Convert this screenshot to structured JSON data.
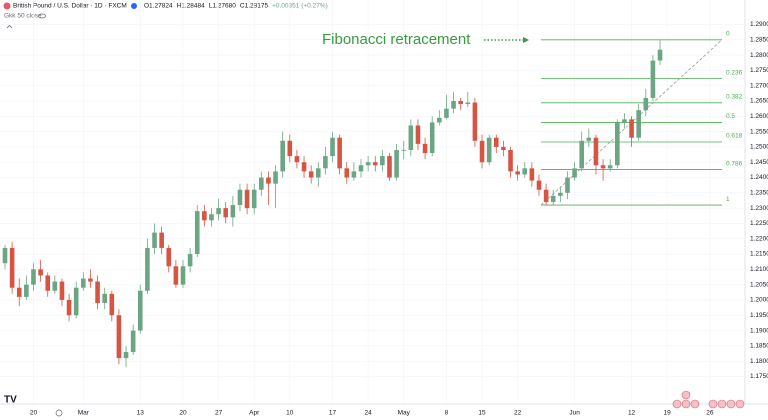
{
  "chart_data": {
    "type": "candlestick",
    "symbol": "British Pound / U.S. Dollar · 1D · FXCM",
    "ohlc_text": [
      "O1.27824",
      "H1.28484",
      "L1.27680",
      "C1.28175",
      "+0.00351 (+0.27%)"
    ],
    "indicator": "Gkk 50 close",
    "annotation": "Fibonacci retracement",
    "up_color": "#6ba583",
    "down_color": "#d75442",
    "fib_color": "#4caf50",
    "categories": [
      null,
      null,
      null,
      null,
      "20",
      null,
      null,
      null,
      null,
      null,
      null,
      "Mar",
      null,
      null,
      null,
      null,
      null,
      null,
      null,
      "13",
      null,
      null,
      null,
      null,
      null,
      "20",
      null,
      null,
      null,
      null,
      "27",
      null,
      null,
      null,
      null,
      "Apr",
      null,
      null,
      null,
      null,
      "10",
      null,
      null,
      null,
      null,
      null,
      "17",
      null,
      null,
      null,
      null,
      "24",
      null,
      null,
      null,
      null,
      "May",
      null,
      null,
      null,
      null,
      null,
      "8",
      null,
      null,
      null,
      null,
      "15",
      null,
      null,
      null,
      null,
      "22",
      null,
      null,
      null,
      null,
      null,
      null,
      null,
      "Jun",
      null,
      null,
      null,
      null,
      null,
      null,
      null,
      "12",
      null,
      null,
      null,
      null,
      "19",
      null,
      null,
      null,
      null,
      null,
      "26"
    ],
    "open": [
      1.212,
      1.217,
      1.204,
      1.201,
      1.205,
      1.21,
      1.208,
      1.203,
      1.206,
      1.2,
      1.195,
      1.204,
      1.207,
      1.206,
      1.199,
      1.202,
      1.195,
      1.181,
      1.183,
      1.19,
      1.203,
      1.217,
      1.222,
      1.217,
      1.211,
      1.205,
      1.211,
      1.215,
      1.229,
      1.226,
      1.228,
      1.23,
      1.227,
      1.231,
      1.236,
      1.23,
      1.236,
      1.24,
      1.238,
      1.242,
      1.252,
      1.247,
      1.245,
      1.242,
      1.24,
      1.243,
      1.247,
      1.253,
      1.243,
      1.24,
      1.242,
      1.244,
      1.245,
      1.244,
      1.247,
      1.24,
      1.249,
      1.249,
      1.257,
      1.251,
      1.248,
      1.258,
      1.2595,
      1.2625,
      1.265,
      1.264,
      1.2645,
      1.252,
      1.245,
      1.253,
      1.25,
      1.249,
      1.242,
      1.241,
      1.243,
      1.239,
      1.236,
      1.232,
      1.234,
      1.235,
      1.24,
      1.243,
      1.252,
      1.253,
      1.244,
      1.243,
      1.244,
      1.258,
      1.259,
      1.253,
      1.262,
      1.266,
      1.27824,
      null,
      null,
      null,
      null,
      null,
      null,
      null
    ],
    "high": [
      1.218,
      1.219,
      1.207,
      1.208,
      1.212,
      1.213,
      1.209,
      1.208,
      1.207,
      1.202,
      1.206,
      1.209,
      1.21,
      1.208,
      1.204,
      1.203,
      1.197,
      1.185,
      1.192,
      1.205,
      1.22,
      1.225,
      1.224,
      1.218,
      1.213,
      1.213,
      1.217,
      1.231,
      1.231,
      1.23,
      1.233,
      1.232,
      1.234,
      1.238,
      1.238,
      1.238,
      1.242,
      1.242,
      1.244,
      1.255,
      1.254,
      1.249,
      1.247,
      1.244,
      1.245,
      1.25,
      1.255,
      1.254,
      1.245,
      1.245,
      1.246,
      1.247,
      1.247,
      1.249,
      1.248,
      1.251,
      1.252,
      1.259,
      1.259,
      1.253,
      1.26,
      1.262,
      1.267,
      1.268,
      1.266,
      1.268,
      1.266,
      1.254,
      1.254,
      1.254,
      1.252,
      1.25,
      1.244,
      1.245,
      1.245,
      1.241,
      1.238,
      1.236,
      1.237,
      1.242,
      1.245,
      1.255,
      1.256,
      1.254,
      1.246,
      1.246,
      1.259,
      1.261,
      1.26,
      1.264,
      1.269,
      1.28,
      1.28484,
      null,
      null,
      null,
      null,
      null,
      null,
      null
    ],
    "low": [
      1.21,
      1.202,
      1.198,
      1.2,
      1.203,
      1.206,
      1.201,
      1.202,
      1.198,
      1.193,
      1.194,
      1.203,
      1.204,
      1.197,
      1.197,
      1.193,
      1.179,
      1.178,
      1.182,
      1.189,
      1.202,
      1.215,
      1.215,
      1.209,
      1.204,
      1.204,
      1.209,
      1.214,
      1.224,
      1.224,
      1.226,
      1.225,
      1.224,
      1.229,
      1.228,
      1.228,
      1.234,
      1.231,
      1.23,
      1.24,
      1.245,
      1.243,
      1.24,
      1.238,
      1.237,
      1.241,
      1.245,
      1.241,
      1.238,
      1.239,
      1.24,
      1.242,
      1.242,
      1.242,
      1.239,
      1.239,
      1.246,
      1.247,
      1.249,
      1.246,
      1.247,
      1.257,
      1.259,
      1.261,
      1.262,
      1.263,
      1.25,
      1.243,
      1.244,
      1.248,
      1.247,
      1.24,
      1.239,
      1.24,
      1.237,
      1.234,
      1.231,
      1.231,
      1.232,
      1.233,
      1.239,
      1.242,
      1.25,
      1.241,
      1.239,
      1.242,
      1.243,
      1.256,
      1.25,
      1.252,
      1.26,
      1.265,
      1.2768,
      null,
      null,
      null,
      null,
      null,
      null,
      null
    ],
    "close": [
      1.217,
      1.204,
      1.201,
      1.205,
      1.21,
      1.208,
      1.203,
      1.206,
      1.2,
      1.195,
      1.204,
      1.207,
      1.206,
      1.199,
      1.202,
      1.195,
      1.181,
      1.183,
      1.19,
      1.203,
      1.217,
      1.222,
      1.217,
      1.211,
      1.205,
      1.211,
      1.215,
      1.229,
      1.226,
      1.228,
      1.23,
      1.227,
      1.231,
      1.236,
      1.23,
      1.236,
      1.24,
      1.238,
      1.242,
      1.252,
      1.247,
      1.245,
      1.242,
      1.24,
      1.243,
      1.247,
      1.253,
      1.243,
      1.24,
      1.242,
      1.244,
      1.245,
      1.244,
      1.247,
      1.24,
      1.249,
      1.249,
      1.257,
      1.251,
      1.248,
      1.258,
      1.2595,
      1.2625,
      1.265,
      1.264,
      1.2645,
      1.252,
      1.245,
      1.253,
      1.25,
      1.249,
      1.242,
      1.241,
      1.243,
      1.239,
      1.236,
      1.232,
      1.234,
      1.235,
      1.24,
      1.243,
      1.252,
      1.253,
      1.244,
      1.243,
      1.244,
      1.258,
      1.259,
      1.253,
      1.262,
      1.266,
      1.2782,
      1.28175,
      null,
      null,
      null,
      null,
      null,
      null,
      null
    ],
    "fib_levels": [
      0,
      0.236,
      0.382,
      0.5,
      0.618,
      0.786,
      1
    ],
    "fib_prices": [
      1.285,
      1.2723,
      1.2644,
      1.258,
      1.2516,
      1.2426,
      1.231
    ],
    "ylim": [
      1.166,
      1.298
    ],
    "yticks": [
      {
        "value": 1.175,
        "label": "1.17500"
      },
      {
        "value": 1.18,
        "label": "1.18000"
      },
      {
        "value": 1.185,
        "label": "1.18500"
      },
      {
        "value": 1.19,
        "label": "1.19000"
      },
      {
        "value": 1.195,
        "label": "1.19500"
      },
      {
        "value": 1.2,
        "label": "1.20000"
      },
      {
        "value": 1.205,
        "label": "1.20500"
      },
      {
        "value": 1.21,
        "label": "1.21000"
      },
      {
        "value": 1.215,
        "label": "1.21500"
      },
      {
        "value": 1.22,
        "label": "1.22000"
      },
      {
        "value": 1.225,
        "label": "1.22500"
      },
      {
        "value": 1.23,
        "label": "1.23000"
      },
      {
        "value": 1.235,
        "label": "1.23500"
      },
      {
        "value": 1.24,
        "label": "1.24000"
      },
      {
        "value": 1.245,
        "label": "1.24500"
      },
      {
        "value": 1.25,
        "label": "1.25000"
      },
      {
        "value": 1.255,
        "label": "1.25500"
      },
      {
        "value": 1.26,
        "label": "1.26000"
      },
      {
        "value": 1.265,
        "label": "1.26500"
      },
      {
        "value": 1.27,
        "label": "1.27000"
      },
      {
        "value": 1.275,
        "label": "1.27500"
      },
      {
        "value": 1.28,
        "label": "1.28000"
      },
      {
        "value": 1.285,
        "label": "1.28500"
      },
      {
        "value": 1.29,
        "label": "1.29000"
      }
    ]
  }
}
